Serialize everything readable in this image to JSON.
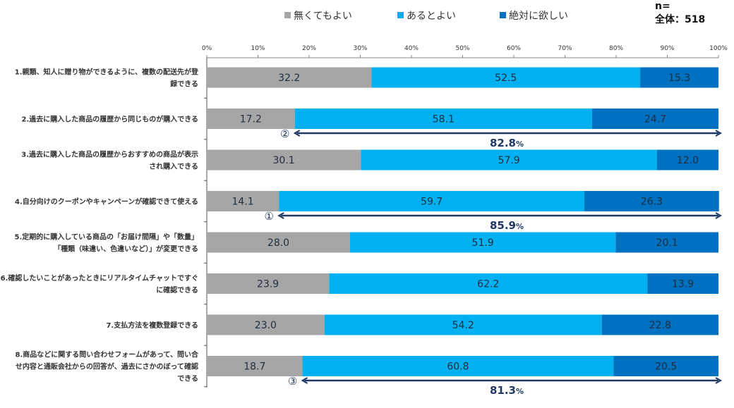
{
  "chart_data": {
    "type": "bar",
    "orientation": "horizontal",
    "stacked": true,
    "xlim": [
      0,
      100
    ],
    "xticks": [
      "0%",
      "10%",
      "20%",
      "30%",
      "40%",
      "50%",
      "60%",
      "70%",
      "80%",
      "90%",
      "100%"
    ],
    "categories": [
      [
        "1.親類、知人に贈り物ができるように、複数の配送先が登",
        "録できる"
      ],
      [
        "2.過去に購入した商品の履歴から同じものが購入できる"
      ],
      [
        "3.過去に購入した商品の履歴からおすすめの商品が表示",
        "され購入できる"
      ],
      [
        "4.自分向けのクーポンやキャンペーンが確認できて使える"
      ],
      [
        "5.定期的に購入している商品の「お届け間隔」や「数量」",
        "「種類（味違い、色違いなど）」が変更できる"
      ],
      [
        "6.確認したいことがあったときにリアルタイムチャットですぐ",
        "に確認できる"
      ],
      [
        "7.支払方法を複数登録できる"
      ],
      [
        "8.商品などに関する問い合わせフォームがあって、問い合",
        "せ内容と通販会社からの回答が、過去にさかのぼって確認",
        "できる"
      ]
    ],
    "series": [
      {
        "name": "無くてもよい",
        "color": "#a6a6a6",
        "values": [
          32.2,
          17.2,
          30.1,
          14.1,
          28.0,
          23.9,
          23.0,
          18.7
        ]
      },
      {
        "name": "あるとよい",
        "color": "#00b0f0",
        "values": [
          52.5,
          58.1,
          57.9,
          59.7,
          51.9,
          62.2,
          54.2,
          60.8
        ]
      },
      {
        "name": "絶対に欲しい",
        "color": "#0070c0",
        "values": [
          15.3,
          24.7,
          12.0,
          26.3,
          20.1,
          13.9,
          22.8,
          20.5
        ]
      }
    ],
    "sample": {
      "label": "n=",
      "group": "全体：518"
    },
    "annotations": [
      {
        "category_index": 1,
        "rank": "②",
        "from": 17.2,
        "to": 100,
        "value": "82.8",
        "unit": "%"
      },
      {
        "category_index": 3,
        "rank": "①",
        "from": 14.1,
        "to": 100,
        "value": "85.9",
        "unit": "%"
      },
      {
        "category_index": 7,
        "rank": "③",
        "from": 18.7,
        "to": 100,
        "value": "81.3",
        "unit": "%"
      }
    ]
  }
}
